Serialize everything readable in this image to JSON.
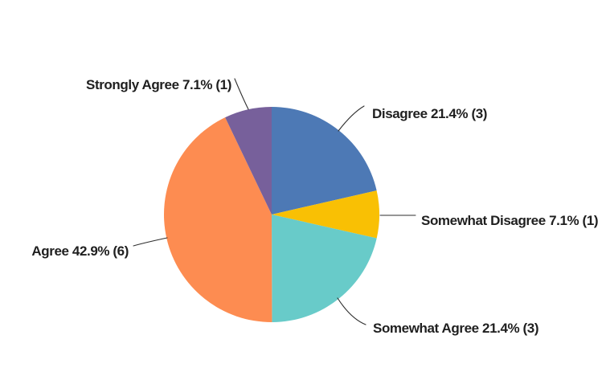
{
  "page": {
    "background_color": "#ffffff"
  },
  "chart_data": {
    "type": "pie",
    "title": "",
    "start_angle_deg": 0,
    "direction": "clockwise",
    "legend_position": "none",
    "labels_style": "outside-with-leader-lines",
    "slices": [
      {
        "category": "Disagree",
        "percent": 21.4,
        "count": 3,
        "label": "Disagree 21.4% (3)",
        "color": "#4d79b5"
      },
      {
        "category": "Somewhat Disagree",
        "percent": 7.1,
        "count": 1,
        "label": "Somewhat Disagree 7.1% (1)",
        "color": "#f9c004"
      },
      {
        "category": "Somewhat Agree",
        "percent": 21.4,
        "count": 3,
        "label": "Somewhat Agree 21.4% (3)",
        "color": "#68cbc9"
      },
      {
        "category": "Agree",
        "percent": 42.9,
        "count": 6,
        "label": "Agree 42.9% (6)",
        "color": "#fd8c51"
      },
      {
        "category": "Strongly Agree",
        "percent": 7.1,
        "count": 1,
        "label": "Strongly Agree 7.1% (1)",
        "color": "#77609b"
      }
    ],
    "label_text_color": "#1f1f1f",
    "leader_line_color": "#2e2e2e"
  }
}
